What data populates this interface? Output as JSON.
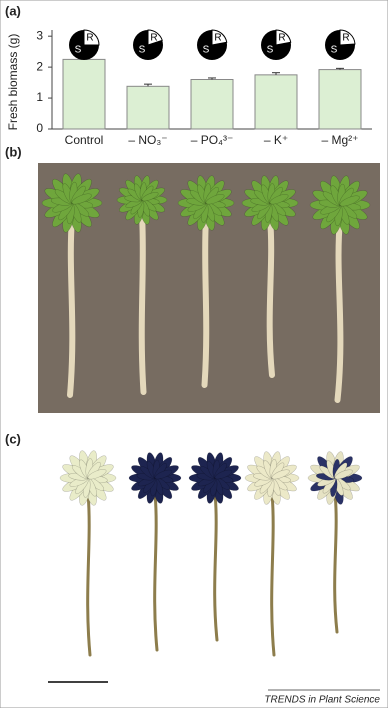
{
  "chart_data": {
    "type": "bar",
    "y_label": "Fresh biomass (g)",
    "categories": [
      "Control",
      "– NO₃⁻",
      "– PO₄³⁻",
      "– K⁺",
      "– Mg²⁺"
    ],
    "values": [
      2.25,
      1.38,
      1.6,
      1.75,
      1.92
    ],
    "errors": [
      0.08,
      0.07,
      0.05,
      0.07,
      0.04
    ],
    "color": "#dcefd3",
    "ylim": [
      0,
      3.2
    ],
    "yticks": [
      0,
      1,
      2,
      3
    ],
    "grid": false,
    "pie_labels": [
      "S",
      "R"
    ],
    "root_fraction": [
      0.25,
      0.2,
      0.22,
      0.22,
      0.24
    ]
  },
  "panels": {
    "a": "(a)",
    "b": "(b)",
    "c": "(c)"
  },
  "footer": "TRENDS in Plant Science"
}
